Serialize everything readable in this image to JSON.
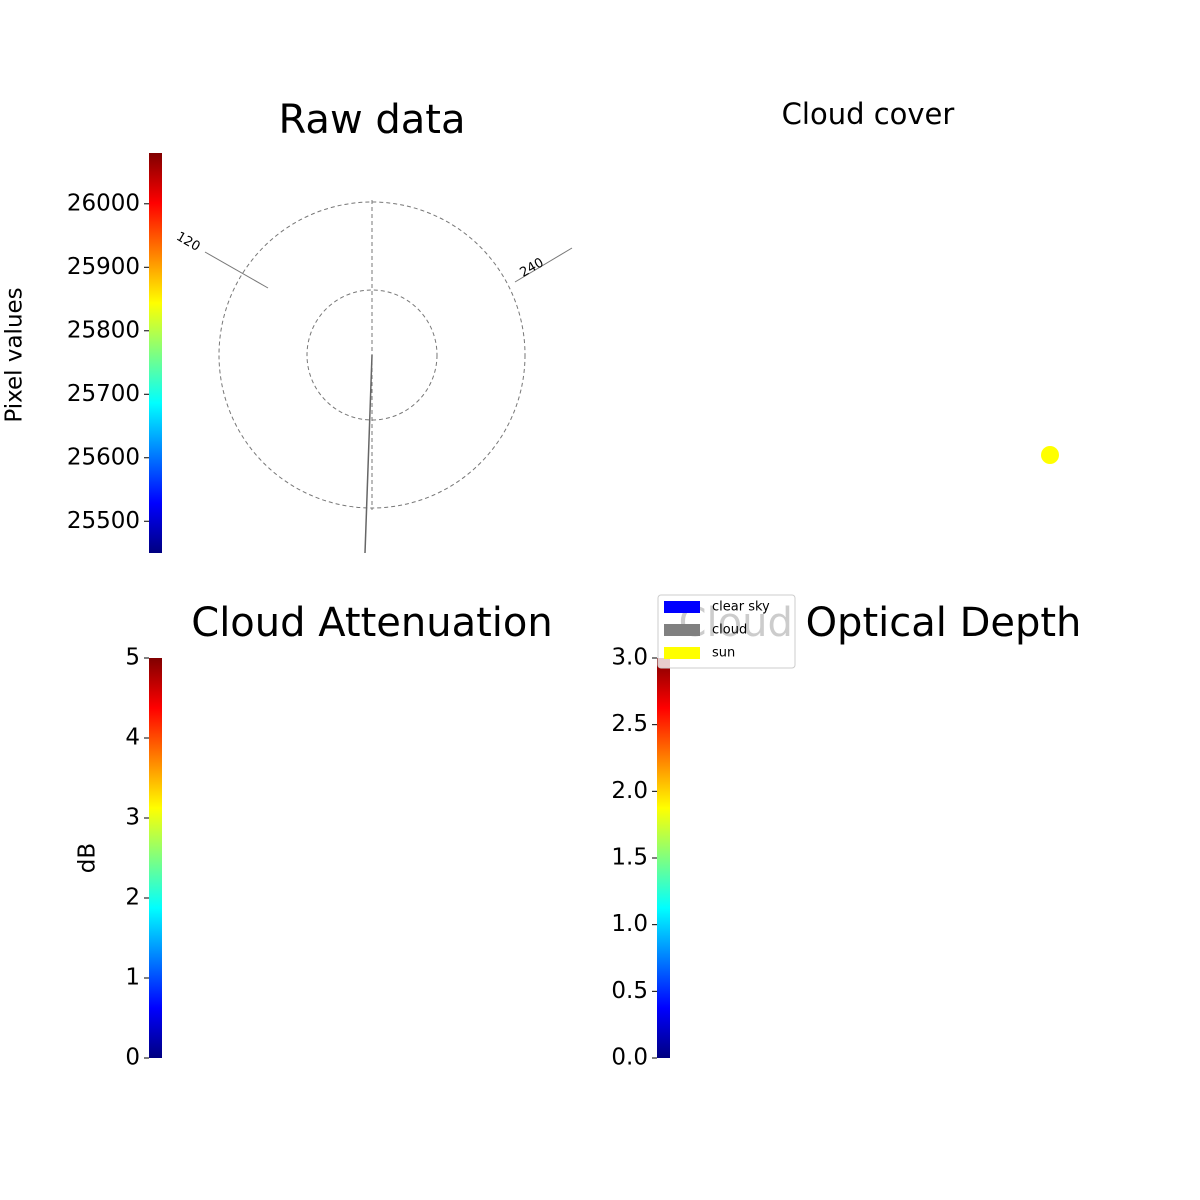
{
  "chart_data": [
    {
      "type": "image",
      "title": "Raw data",
      "colorbar_label": "Pixel values",
      "clim": [
        25450,
        26080
      ],
      "cticks": [
        25500,
        25600,
        25700,
        25800,
        25900,
        26000
      ],
      "colormap": "jet",
      "azimuth_ticks": [
        120,
        240
      ]
    },
    {
      "type": "image",
      "title": "Cloud cover",
      "series": [
        {
          "name": "clear sky",
          "color": "#0000ff"
        },
        {
          "name": "cloud",
          "color": "#808080"
        },
        {
          "name": "sun",
          "color": "#ffff00"
        }
      ]
    },
    {
      "type": "image",
      "title": "Cloud Attenuation",
      "colorbar_label": "dB",
      "clim": [
        0,
        5
      ],
      "cticks": [
        0,
        1,
        2,
        3,
        4,
        5
      ],
      "colormap": "jet"
    },
    {
      "type": "image",
      "title": "Cloud Optical Depth",
      "clim": [
        0,
        3
      ],
      "cticks": [
        {
          "value": 0,
          "label": "0.0"
        },
        0.5,
        {
          "value": 1,
          "label": "1.0"
        },
        1.5,
        {
          "value": 2,
          "label": "2.0"
        },
        2.5,
        {
          "value": 3,
          "label": "3.0"
        }
      ],
      "colormap": "jet"
    }
  ]
}
